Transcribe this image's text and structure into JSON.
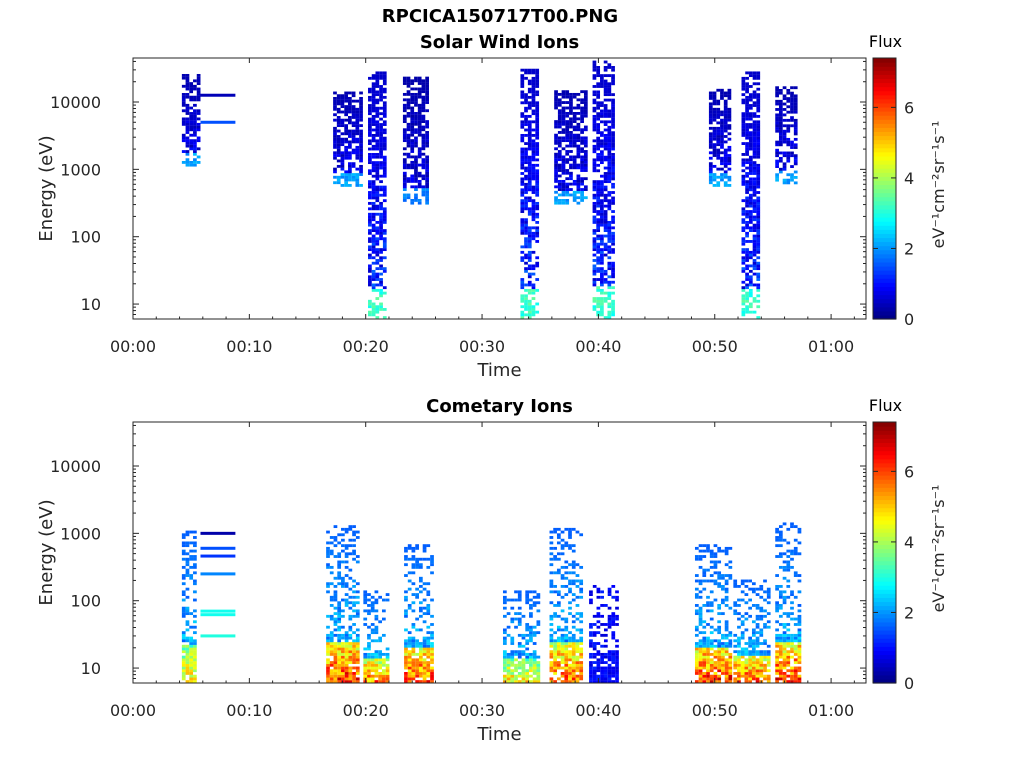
{
  "figure": {
    "title": "RPCICA150717T00.PNG"
  },
  "chart_data": [
    {
      "type": "heatmap",
      "title": "Solar Wind Ions",
      "xlabel": "Time",
      "ylabel": "Energy (eV)",
      "xlim_minutes": [
        0,
        63
      ],
      "x_ticks": [
        "00:00",
        "00:10",
        "00:20",
        "00:30",
        "00:40",
        "00:50",
        "01:00"
      ],
      "y_scale": "log",
      "ylim_eV": [
        6,
        45000
      ],
      "y_ticks": [
        "10",
        "100",
        "1000",
        "10000"
      ],
      "colorbar": {
        "label_top": "Flux",
        "label": "eV⁻¹cm⁻²sr⁻¹s⁻¹",
        "range": [
          0,
          7.4
        ],
        "ticks": [
          "0",
          "2",
          "4",
          "6"
        ]
      },
      "events": [
        {
          "t_start": 4.2,
          "t_end": 5.8,
          "e_min_eV": 1100,
          "e_max_eV": 25000,
          "flux_max": 2.3
        },
        {
          "t_start": 17.2,
          "t_end": 19.6,
          "e_min_eV": 550,
          "e_max_eV": 14000,
          "flux_max": 2.3
        },
        {
          "t_start": 20.2,
          "t_end": 21.8,
          "e_min_eV": 6,
          "e_max_eV": 28000,
          "flux_max": 3.5
        },
        {
          "t_start": 23.2,
          "t_end": 25.2,
          "e_min_eV": 300,
          "e_max_eV": 22000,
          "flux_max": 2.0
        },
        {
          "t_start": 33.3,
          "t_end": 34.8,
          "e_min_eV": 6,
          "e_max_eV": 30000,
          "flux_max": 3.5
        },
        {
          "t_start": 36.2,
          "t_end": 38.8,
          "e_min_eV": 300,
          "e_max_eV": 14000,
          "flux_max": 2.3
        },
        {
          "t_start": 39.5,
          "t_end": 41.2,
          "e_min_eV": 6,
          "e_max_eV": 38000,
          "flux_max": 3.5
        },
        {
          "t_start": 49.5,
          "t_end": 51.2,
          "e_min_eV": 550,
          "e_max_eV": 15000,
          "flux_max": 2.3
        },
        {
          "t_start": 52.3,
          "t_end": 53.9,
          "e_min_eV": 6,
          "e_max_eV": 26000,
          "flux_max": 3.5
        },
        {
          "t_start": 55.2,
          "t_end": 56.9,
          "e_min_eV": 600,
          "e_max_eV": 16000,
          "flux_max": 2.3
        }
      ],
      "lines": [
        {
          "t_start": 5.8,
          "t_end": 8.8,
          "energy_eV": 12600,
          "flux": 0.4
        },
        {
          "t_start": 5.8,
          "t_end": 8.8,
          "energy_eV": 5000,
          "flux": 1.5
        }
      ]
    },
    {
      "type": "heatmap",
      "title": "Cometary Ions",
      "xlabel": "Time",
      "ylabel": "Energy (eV)",
      "xlim_minutes": [
        0,
        63
      ],
      "x_ticks": [
        "00:00",
        "00:10",
        "00:20",
        "00:30",
        "00:40",
        "00:50",
        "01:00"
      ],
      "y_scale": "log",
      "ylim_eV": [
        6,
        45000
      ],
      "y_ticks": [
        "10",
        "100",
        "1000",
        "10000"
      ],
      "colorbar": {
        "label_top": "Flux",
        "label": "eV⁻¹cm⁻²sr⁻¹s⁻¹",
        "range": [
          0,
          7.4
        ],
        "ticks": [
          "0",
          "2",
          "4",
          "6"
        ]
      },
      "events": [
        {
          "t_start": 4.2,
          "t_end": 5.2,
          "e_min_eV": 6,
          "e_max_eV": 1000,
          "flux_max": 5.5
        },
        {
          "t_start": 16.6,
          "t_end": 19.2,
          "e_min_eV": 6,
          "e_max_eV": 1300,
          "flux_max": 7.2
        },
        {
          "t_start": 19.8,
          "t_end": 22.0,
          "e_min_eV": 6,
          "e_max_eV": 140,
          "flux_max": 6.5
        },
        {
          "t_start": 23.3,
          "t_end": 25.6,
          "e_min_eV": 6,
          "e_max_eV": 650,
          "flux_max": 7.0
        },
        {
          "t_start": 31.8,
          "t_end": 34.8,
          "e_min_eV": 6,
          "e_max_eV": 140,
          "flux_max": 5.5
        },
        {
          "t_start": 35.8,
          "t_end": 38.6,
          "e_min_eV": 6,
          "e_max_eV": 1100,
          "flux_max": 6.8
        },
        {
          "t_start": 39.2,
          "t_end": 41.6,
          "e_min_eV": 6,
          "e_max_eV": 170,
          "flux_max": 1.2
        },
        {
          "t_start": 48.3,
          "t_end": 51.2,
          "e_min_eV": 6,
          "e_max_eV": 650,
          "flux_max": 7.2
        },
        {
          "t_start": 51.6,
          "t_end": 54.5,
          "e_min_eV": 6,
          "e_max_eV": 200,
          "flux_max": 6.8
        },
        {
          "t_start": 55.2,
          "t_end": 57.3,
          "e_min_eV": 6,
          "e_max_eV": 1350,
          "flux_max": 7.2
        }
      ],
      "lines": [
        {
          "t_start": 5.8,
          "t_end": 8.8,
          "energy_eV": 1000,
          "flux": 0.3
        },
        {
          "t_start": 5.8,
          "t_end": 8.8,
          "energy_eV": 600,
          "flux": 1.5
        },
        {
          "t_start": 5.8,
          "t_end": 8.8,
          "energy_eV": 460,
          "flux": 1.3
        },
        {
          "t_start": 5.8,
          "t_end": 8.8,
          "energy_eV": 250,
          "flux": 1.9
        },
        {
          "t_start": 5.8,
          "t_end": 8.8,
          "energy_eV": 70,
          "flux": 2.9
        },
        {
          "t_start": 5.8,
          "t_end": 8.8,
          "energy_eV": 62,
          "flux": 2.9
        },
        {
          "t_start": 5.8,
          "t_end": 8.8,
          "energy_eV": 30,
          "flux": 3.0
        }
      ]
    }
  ]
}
